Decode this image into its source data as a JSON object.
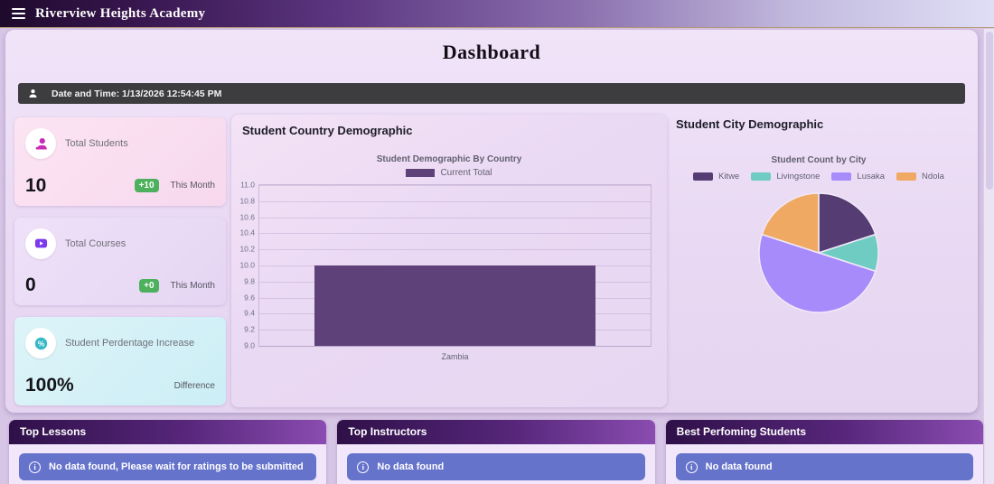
{
  "app": {
    "title": "Riverview Heights Academy"
  },
  "page": {
    "title": "Dashboard",
    "datetime": "Date and Time: 1/13/2026 12:54:45 PM"
  },
  "stats": [
    {
      "icon": "students-icon",
      "label": "Total Students",
      "value": "10",
      "badge": "+10",
      "period": "This Month"
    },
    {
      "icon": "courses-icon",
      "label": "Total Courses",
      "value": "0",
      "badge": "+0",
      "period": "This Month"
    },
    {
      "icon": "percentage-icon",
      "label": "Student Perdentage Increase",
      "value": "100%",
      "badge": "",
      "period": "Difference"
    }
  ],
  "panels": {
    "country": {
      "title": "Student Country Demographic"
    },
    "city": {
      "title": "Student City Demographic"
    }
  },
  "chart_data": [
    {
      "type": "bar",
      "title": "Student Demographic By Country",
      "categories": [
        "Zambia"
      ],
      "series": [
        {
          "name": "Current Total",
          "values": [
            10
          ],
          "color": "#5d4178"
        }
      ],
      "ylim": [
        9.0,
        11.0
      ],
      "ytick_step": 0.2,
      "grid": true,
      "legend_position": "top"
    },
    {
      "type": "pie",
      "title": "Student Count by City",
      "labels": [
        "Kitwe",
        "Livingstone",
        "Lusaka",
        "Ndola"
      ],
      "values": [
        2,
        1,
        5,
        2
      ],
      "colors": [
        "#553c72",
        "#6fccc3",
        "#a78bfa",
        "#f0a963"
      ],
      "legend_position": "top"
    }
  ],
  "bottom_panels": [
    {
      "title": "Top Lessons",
      "alert": "No data found, Please wait for ratings to be submitted"
    },
    {
      "title": "Top Instructors",
      "alert": "No data found"
    },
    {
      "title": "Best Perfoming Students",
      "alert": "No data found"
    }
  ],
  "colors": {
    "badge_green": "#4cb05c",
    "alert_indigo": "#6673cb",
    "bar_purple": "#5d4178",
    "topbar_dark": "#1e0a2c"
  }
}
